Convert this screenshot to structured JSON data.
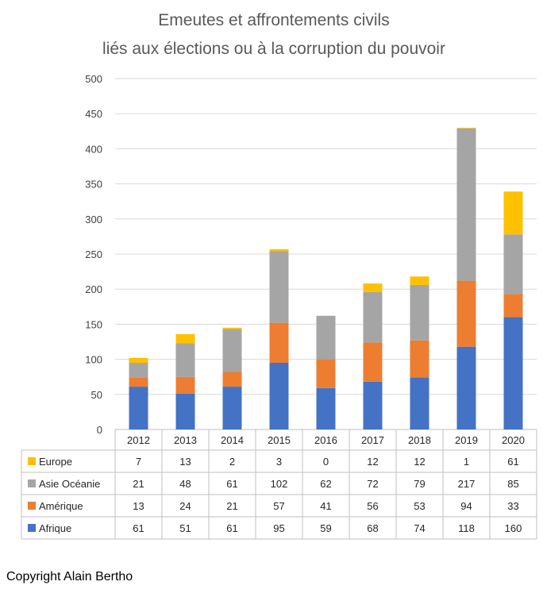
{
  "chart_data": {
    "type": "bar",
    "stacked": true,
    "title_lines": [
      "Emeutes et affrontements civils",
      "liés aux élections ou à la corruption du pouvoir"
    ],
    "categories": [
      "2012",
      "2013",
      "2014",
      "2015",
      "2016",
      "2017",
      "2018",
      "2019",
      "2020"
    ],
    "series": [
      {
        "name": "Afrique",
        "color": "#4472C4",
        "values": [
          61,
          51,
          61,
          95,
          59,
          68,
          74,
          118,
          160
        ]
      },
      {
        "name": "Amérique",
        "color": "#ED7D31",
        "values": [
          13,
          24,
          21,
          57,
          41,
          56,
          53,
          94,
          33
        ]
      },
      {
        "name": "Asie Océanie",
        "color": "#A5A5A5",
        "values": [
          21,
          48,
          61,
          102,
          62,
          72,
          79,
          217,
          85
        ]
      },
      {
        "name": "Europe",
        "color": "#FFC000",
        "values": [
          7,
          13,
          2,
          3,
          0,
          12,
          12,
          1,
          61
        ]
      }
    ],
    "table_row_order": [
      "Europe",
      "Asie Océanie",
      "Amérique",
      "Afrique"
    ],
    "ylim": [
      0,
      500
    ],
    "yticks": [
      0,
      50,
      100,
      150,
      200,
      250,
      300,
      350,
      400,
      450,
      500
    ],
    "grid": true,
    "data_table": true
  },
  "footer": {
    "copyright": "Copyright Alain Bertho"
  }
}
